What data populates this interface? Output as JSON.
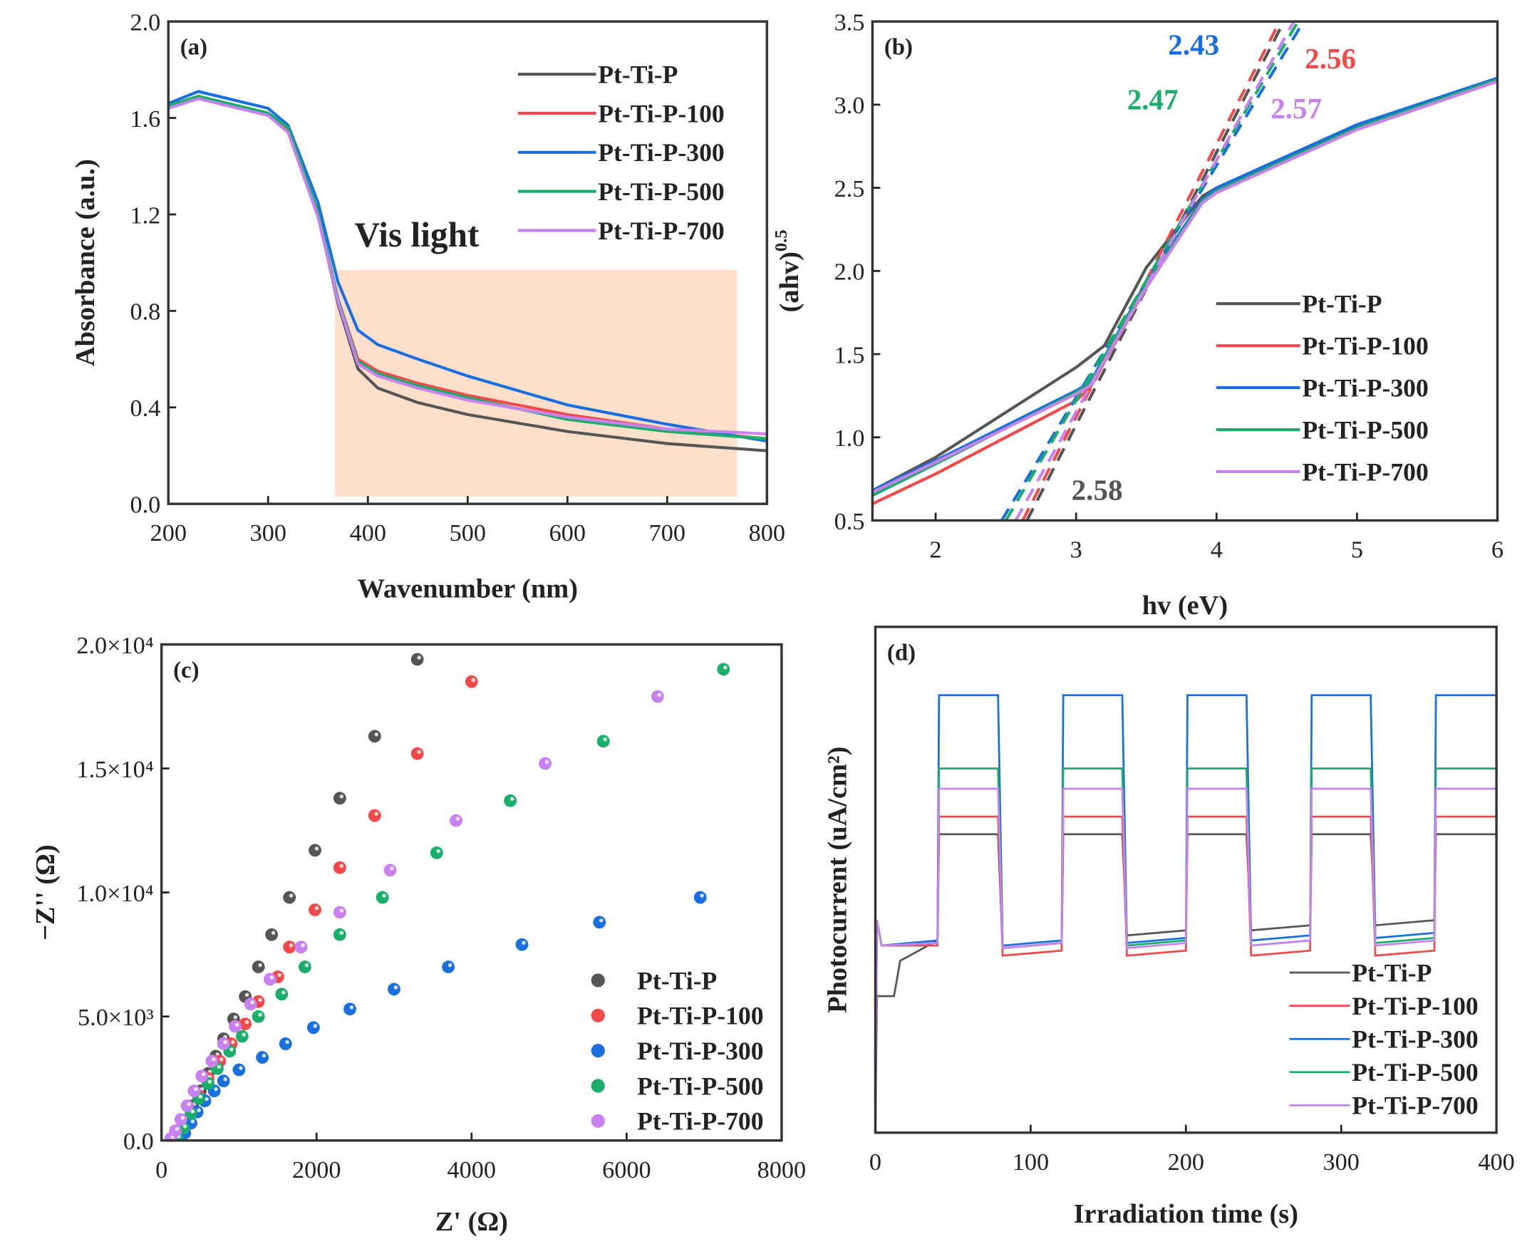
{
  "colors": {
    "Pt-Ti-P": "#555555",
    "Pt-Ti-P-100": "#f24a4a",
    "Pt-Ti-P-300": "#1a6fe0",
    "Pt-Ti-P-500": "#1aae6a",
    "Pt-Ti-P-700": "#c882f0",
    "vis_band": "#fbd9c2"
  },
  "chart_data": [
    {
      "panel_label": "(a)",
      "type": "line",
      "xlabel": "Wavenumber (nm)",
      "ylabel": "Absorbance (a.u.)",
      "xlim": [
        200,
        800
      ],
      "ylim": [
        0,
        2.0
      ],
      "xtick_labels": [
        "200",
        "300",
        "400",
        "500",
        "600",
        "700",
        "800"
      ],
      "ytick_labels": [
        "0.0",
        "0.4",
        "0.8",
        "1.2",
        "1.6",
        "2.0"
      ],
      "legend_position": "top-right",
      "annotation": {
        "text": "Vis light",
        "x_range": [
          367,
          770
        ],
        "y_range": [
          0.03,
          0.97
        ]
      },
      "series": [
        {
          "name": "Pt-Ti-P",
          "x": [
            200,
            230,
            300,
            320,
            350,
            370,
            390,
            410,
            450,
            500,
            600,
            700,
            800
          ],
          "y": [
            1.65,
            1.69,
            1.62,
            1.55,
            1.2,
            0.83,
            0.56,
            0.48,
            0.42,
            0.37,
            0.3,
            0.25,
            0.22
          ]
        },
        {
          "name": "Pt-Ti-P-100",
          "x": [
            200,
            230,
            300,
            320,
            350,
            370,
            390,
            410,
            450,
            500,
            600,
            700,
            800
          ],
          "y": [
            1.65,
            1.68,
            1.62,
            1.55,
            1.2,
            0.85,
            0.6,
            0.55,
            0.5,
            0.45,
            0.37,
            0.31,
            0.27
          ]
        },
        {
          "name": "Pt-Ti-P-300",
          "x": [
            200,
            230,
            300,
            320,
            350,
            370,
            390,
            410,
            450,
            500,
            600,
            700,
            800
          ],
          "y": [
            1.66,
            1.71,
            1.64,
            1.57,
            1.25,
            0.92,
            0.72,
            0.66,
            0.6,
            0.53,
            0.41,
            0.33,
            0.26
          ]
        },
        {
          "name": "Pt-Ti-P-500",
          "x": [
            200,
            230,
            300,
            320,
            350,
            370,
            390,
            410,
            450,
            500,
            600,
            700,
            800
          ],
          "y": [
            1.65,
            1.69,
            1.62,
            1.56,
            1.21,
            0.85,
            0.59,
            0.54,
            0.49,
            0.44,
            0.35,
            0.3,
            0.27
          ]
        },
        {
          "name": "Pt-Ti-P-700",
          "x": [
            200,
            230,
            300,
            320,
            350,
            370,
            390,
            410,
            450,
            500,
            600,
            700,
            800
          ],
          "y": [
            1.64,
            1.68,
            1.61,
            1.54,
            1.19,
            0.84,
            0.58,
            0.53,
            0.48,
            0.43,
            0.36,
            0.31,
            0.29
          ]
        }
      ]
    },
    {
      "panel_label": "(b)",
      "type": "line",
      "xlabel": "hv (eV)",
      "ylabel": "(ahv)",
      "ylabel_sup": "0.5",
      "xlim": [
        1.55,
        6
      ],
      "ylim": [
        0.5,
        3.5
      ],
      "xtick_labels": [
        "2",
        "3",
        "4",
        "5",
        "6"
      ],
      "ytick_labels": [
        "0.5",
        "1.0",
        "1.5",
        "2.0",
        "2.5",
        "3.0",
        "3.5"
      ],
      "legend_position": "center-right",
      "series": [
        {
          "name": "Pt-Ti-P",
          "x": [
            1.55,
            2,
            3,
            3.2,
            3.5,
            3.9,
            4,
            5,
            6
          ],
          "y": [
            0.68,
            0.88,
            1.42,
            1.55,
            2.02,
            2.45,
            2.5,
            2.87,
            3.15
          ],
          "tangent": [
            [
              2.65,
              0.5
            ],
            [
              4.48,
              3.5
            ]
          ],
          "bandgap": "2.58"
        },
        {
          "name": "Pt-Ti-P-100",
          "x": [
            1.55,
            2,
            3,
            3.1,
            3.5,
            3.9,
            4,
            5,
            6
          ],
          "y": [
            0.6,
            0.78,
            1.22,
            1.3,
            1.9,
            2.42,
            2.48,
            2.85,
            3.14
          ],
          "tangent": [
            [
              2.62,
              0.5
            ],
            [
              4.45,
              3.5
            ]
          ],
          "bandgap": "2.56"
        },
        {
          "name": "Pt-Ti-P-300",
          "x": [
            1.55,
            2,
            3,
            3.1,
            3.5,
            3.9,
            4,
            5,
            6
          ],
          "y": [
            0.68,
            0.86,
            1.28,
            1.33,
            1.93,
            2.43,
            2.5,
            2.88,
            3.16
          ],
          "tangent": [
            [
              2.47,
              0.5
            ],
            [
              4.62,
              3.5
            ]
          ],
          "bandgap": "2.43"
        },
        {
          "name": "Pt-Ti-P-500",
          "x": [
            1.55,
            2,
            3,
            3.1,
            3.5,
            3.9,
            4,
            5,
            6
          ],
          "y": [
            0.65,
            0.84,
            1.27,
            1.32,
            1.92,
            2.42,
            2.48,
            2.86,
            3.15
          ],
          "tangent": [
            [
              2.5,
              0.5
            ],
            [
              4.58,
              3.5
            ]
          ],
          "bandgap": "2.47"
        },
        {
          "name": "Pt-Ti-P-700",
          "x": [
            1.55,
            2,
            3,
            3.1,
            3.5,
            3.9,
            4,
            5,
            6
          ],
          "y": [
            0.67,
            0.85,
            1.26,
            1.31,
            1.9,
            2.41,
            2.47,
            2.85,
            3.14
          ],
          "tangent": [
            [
              2.57,
              0.5
            ],
            [
              4.55,
              3.5
            ]
          ],
          "bandgap": "2.57"
        }
      ]
    },
    {
      "panel_label": "(c)",
      "type": "scatter",
      "xlabel": "Z' (Ω)",
      "ylabel": "−Z'' (Ω)",
      "xlim": [
        0,
        8000
      ],
      "ylim": [
        0,
        20000
      ],
      "xtick_labels": [
        "0",
        "2000",
        "4000",
        "6000",
        "8000"
      ],
      "ytick_labels": [
        "0.0",
        "5.0×10³",
        "1.0×10⁴",
        "1.5×10⁴",
        "2.0×10⁴"
      ],
      "legend_position": "bottom-right",
      "series": [
        {
          "name": "Pt-Ti-P",
          "x": [
            120,
            200,
            300,
            400,
            500,
            600,
            700,
            800,
            930,
            1080,
            1250,
            1420,
            1650,
            1980,
            2300,
            2750,
            3300
          ],
          "y": [
            50,
            300,
            800,
            1400,
            2000,
            2700,
            3400,
            4100,
            4900,
            5800,
            7000,
            8300,
            9800,
            11700,
            13800,
            16300,
            19400
          ]
        },
        {
          "name": "Pt-Ti-P-100",
          "x": [
            180,
            280,
            380,
            480,
            600,
            750,
            900,
            1080,
            1250,
            1500,
            1650,
            1980,
            2300,
            2750,
            3300,
            4000
          ],
          "y": [
            150,
            600,
            1200,
            1800,
            2500,
            3200,
            3900,
            4700,
            5600,
            6600,
            7800,
            9300,
            11000,
            13100,
            15600,
            18500
          ]
        },
        {
          "name": "Pt-Ti-P-300",
          "x": [
            220,
            300,
            380,
            460,
            560,
            680,
            800,
            1000,
            1300,
            1600,
            1960,
            2430,
            3000,
            3700,
            4650,
            5650,
            6950
          ],
          "y": [
            50,
            300,
            700,
            1150,
            1600,
            2000,
            2400,
            2850,
            3350,
            3900,
            4550,
            5300,
            6100,
            7000,
            7900,
            8800,
            9800
          ]
        },
        {
          "name": "Pt-Ti-P-500",
          "x": [
            200,
            280,
            380,
            480,
            600,
            720,
            880,
            1040,
            1250,
            1550,
            1850,
            2300,
            2850,
            3550,
            4500,
            5700,
            7250
          ],
          "y": [
            100,
            500,
            1100,
            1700,
            2300,
            2900,
            3600,
            4200,
            5000,
            5900,
            7000,
            8300,
            9800,
            11600,
            13700,
            16100,
            19000
          ]
        },
        {
          "name": "Pt-Ti-P-700",
          "x": [
            120,
            180,
            250,
            330,
            420,
            520,
            650,
            800,
            950,
            1150,
            1400,
            1800,
            2300,
            2950,
            3800,
            4950,
            6400
          ],
          "y": [
            80,
            400,
            850,
            1400,
            2000,
            2600,
            3200,
            3900,
            4600,
            5500,
            6500,
            7800,
            9200,
            10900,
            12900,
            15200,
            17900
          ]
        }
      ]
    },
    {
      "panel_label": "(d)",
      "type": "line",
      "xlabel": "Irradiation time (s)",
      "ylabel": "Photocurrent (uA/cm²)",
      "xlim": [
        0,
        400
      ],
      "ylim": [
        0,
        100
      ],
      "y_units": "arbitrary (no y tick labels shown)",
      "xtick_labels": [
        "0",
        "100",
        "200",
        "300",
        "400"
      ],
      "light_on_intervals": [
        [
          40,
          80
        ],
        [
          120,
          160
        ],
        [
          200,
          240
        ],
        [
          280,
          320
        ],
        [
          360,
          400
        ]
      ],
      "legend_position": "bottom-right",
      "series": [
        {
          "name": "Pt-Ti-P",
          "on_level": 59,
          "off_levels": [
            37,
            37.5,
            40,
            41,
            42
          ],
          "initial_dip": 27
        },
        {
          "name": "Pt-Ti-P-100",
          "on_level": 62.5,
          "off_levels": [
            37,
            36,
            36,
            36,
            36
          ]
        },
        {
          "name": "Pt-Ti-P-300",
          "on_level": 86.5,
          "off_levels": [
            38,
            38,
            38.5,
            39,
            39.5
          ]
        },
        {
          "name": "Pt-Ti-P-500",
          "on_level": 72,
          "off_levels": [
            37.5,
            37.5,
            38,
            38,
            38.5
          ]
        },
        {
          "name": "Pt-Ti-P-700",
          "on_level": 68,
          "off_levels": [
            37.5,
            37.5,
            37.5,
            38,
            38
          ]
        }
      ]
    }
  ]
}
